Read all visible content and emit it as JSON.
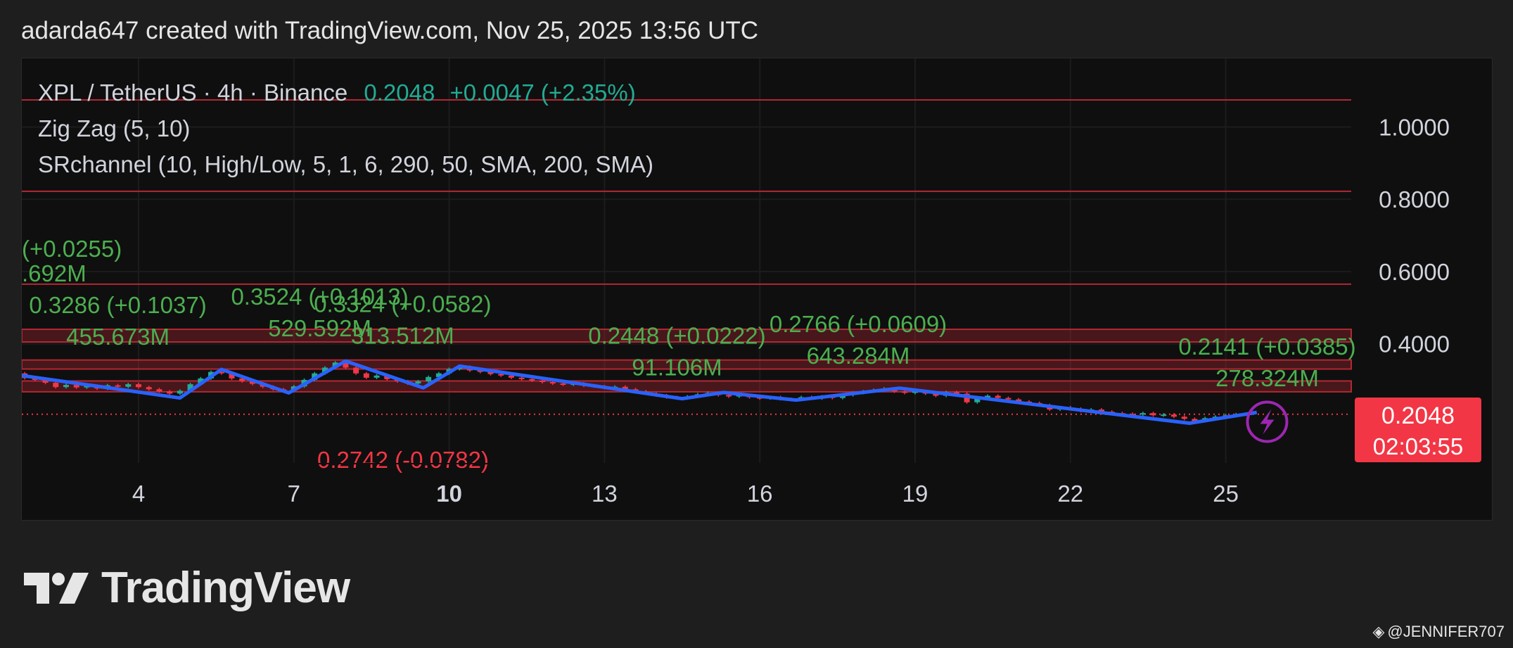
{
  "header": {
    "attribution": "adarda647 created with TradingView.com, Nov 25, 2025 13:56 UTC"
  },
  "legend": {
    "symbol": "XPL / TetherUS · 4h · Binance",
    "last": "0.2048",
    "change": "+0.0047 (+2.35%)",
    "indicator1": "Zig Zag (5, 10)",
    "indicator2": "SRchannel (10, High/Low, 5, 1, 6, 290, 50, SMA, 200, SMA)"
  },
  "price_badge": {
    "price": "0.2048",
    "countdown": "02:03:55"
  },
  "logo": {
    "text": "TradingView"
  },
  "watermark": {
    "text": "@JENNIFER707"
  },
  "colors": {
    "up": "#22ab94",
    "down": "#f23645",
    "zigzag": "#2962ff",
    "label_green": "#4caf50",
    "sr_line": "#b22833",
    "sr_zone": "rgba(178,40,51,0.35)",
    "alert_icon": "#9c27b0"
  },
  "chart_data": {
    "type": "candlestick",
    "title": "XPL / TetherUS · 4h · Binance",
    "x_ticks": [
      "4",
      "7",
      "10",
      "13",
      "16",
      "19",
      "22",
      "25"
    ],
    "x_tick_bold": [
      "10"
    ],
    "y_ticks": [
      "1.0000",
      "0.8000",
      "0.6000",
      "0.4000"
    ],
    "ylim": [
      0.07,
      1.19
    ],
    "last_price": 0.2048,
    "zigzag": [
      {
        "day": 1.6,
        "price": 0.315
      },
      {
        "day": 4.8,
        "price": 0.25
      },
      {
        "day": 5.6,
        "price": 0.329
      },
      {
        "day": 6.9,
        "price": 0.264
      },
      {
        "day": 8.0,
        "price": 0.352
      },
      {
        "day": 9.5,
        "price": 0.278
      },
      {
        "day": 10.2,
        "price": 0.338
      },
      {
        "day": 14.5,
        "price": 0.248
      },
      {
        "day": 15.3,
        "price": 0.265
      },
      {
        "day": 16.7,
        "price": 0.244
      },
      {
        "day": 18.7,
        "price": 0.277
      },
      {
        "day": 24.3,
        "price": 0.18
      },
      {
        "day": 25.6,
        "price": 0.21
      }
    ],
    "peak_labels": [
      {
        "day": 3.6,
        "price": 0.3286,
        "line1": "0.3286 (+0.1037)",
        "line2": "455.673M"
      },
      {
        "day": 7.5,
        "price": 0.3524,
        "line1": "0.3524 (+0.1013)",
        "line2": "529.592M"
      },
      {
        "day": 9.1,
        "price": 0.3324,
        "line1": "0.3324 (+0.0582)",
        "line2": "313.512M"
      },
      {
        "day": 14.4,
        "price": 0.2448,
        "line1": "0.2448 (+0.0222)",
        "line2": "91.106M"
      },
      {
        "day": 17.9,
        "price": 0.2766,
        "line1": "0.2766 (+0.0609)",
        "line2": "643.284M"
      },
      {
        "day": 25.8,
        "price": 0.2141,
        "line1": "0.2141 (+0.0385)",
        "line2": "278.324M"
      }
    ],
    "clipped_left_labels": {
      "line1": "(+0.0255)",
      "line2": ".692M"
    },
    "clipped_bottom_label": "0.2742 (-0.0782)",
    "sr_lines": [
      1.075,
      0.822,
      0.565
    ],
    "sr_zones": [
      [
        0.405,
        0.44
      ],
      [
        0.33,
        0.355
      ],
      [
        0.267,
        0.297
      ]
    ],
    "candles": [
      [
        1.6,
        0.312,
        0.318
      ],
      [
        1.8,
        0.318,
        0.305
      ],
      [
        2.0,
        0.305,
        0.3
      ],
      [
        2.2,
        0.3,
        0.292
      ],
      [
        2.4,
        0.292,
        0.28
      ],
      [
        2.6,
        0.28,
        0.286
      ],
      [
        2.8,
        0.286,
        0.279
      ],
      [
        3.0,
        0.279,
        0.283
      ],
      [
        3.2,
        0.283,
        0.276
      ],
      [
        3.4,
        0.276,
        0.285
      ],
      [
        3.6,
        0.285,
        0.281
      ],
      [
        3.8,
        0.281,
        0.288
      ],
      [
        4.0,
        0.288,
        0.28
      ],
      [
        4.2,
        0.28,
        0.274
      ],
      [
        4.4,
        0.274,
        0.268
      ],
      [
        4.6,
        0.268,
        0.262
      ],
      [
        4.8,
        0.262,
        0.27
      ],
      [
        5.0,
        0.27,
        0.288
      ],
      [
        5.2,
        0.288,
        0.304
      ],
      [
        5.4,
        0.304,
        0.322
      ],
      [
        5.6,
        0.322,
        0.318
      ],
      [
        5.8,
        0.318,
        0.304
      ],
      [
        6.0,
        0.304,
        0.296
      ],
      [
        6.2,
        0.296,
        0.289
      ],
      [
        6.4,
        0.289,
        0.281
      ],
      [
        6.6,
        0.281,
        0.274
      ],
      [
        6.8,
        0.274,
        0.27
      ],
      [
        7.0,
        0.27,
        0.282
      ],
      [
        7.2,
        0.282,
        0.3
      ],
      [
        7.4,
        0.3,
        0.318
      ],
      [
        7.6,
        0.318,
        0.334
      ],
      [
        7.8,
        0.334,
        0.348
      ],
      [
        8.0,
        0.348,
        0.334
      ],
      [
        8.2,
        0.334,
        0.318
      ],
      [
        8.4,
        0.318,
        0.306
      ],
      [
        8.6,
        0.306,
        0.312
      ],
      [
        8.8,
        0.312,
        0.302
      ],
      [
        9.0,
        0.302,
        0.296
      ],
      [
        9.2,
        0.296,
        0.29
      ],
      [
        9.4,
        0.29,
        0.296
      ],
      [
        9.6,
        0.296,
        0.308
      ],
      [
        9.8,
        0.308,
        0.318
      ],
      [
        10.0,
        0.318,
        0.33
      ],
      [
        10.2,
        0.33,
        0.336
      ],
      [
        10.4,
        0.336,
        0.326
      ],
      [
        10.6,
        0.326,
        0.322
      ],
      [
        10.8,
        0.322,
        0.316
      ],
      [
        11.0,
        0.316,
        0.312
      ],
      [
        11.2,
        0.312,
        0.306
      ],
      [
        11.4,
        0.306,
        0.302
      ],
      [
        11.6,
        0.302,
        0.298
      ],
      [
        11.8,
        0.298,
        0.294
      ],
      [
        12.0,
        0.294,
        0.29
      ],
      [
        12.2,
        0.29,
        0.287
      ],
      [
        12.4,
        0.287,
        0.29
      ],
      [
        12.6,
        0.29,
        0.284
      ],
      [
        12.8,
        0.284,
        0.282
      ],
      [
        13.0,
        0.282,
        0.278
      ],
      [
        13.2,
        0.278,
        0.281
      ],
      [
        13.4,
        0.281,
        0.274
      ],
      [
        13.6,
        0.274,
        0.268
      ],
      [
        13.8,
        0.268,
        0.262
      ],
      [
        14.0,
        0.262,
        0.257
      ],
      [
        14.2,
        0.257,
        0.252
      ],
      [
        14.4,
        0.252,
        0.249
      ],
      [
        14.6,
        0.249,
        0.254
      ],
      [
        14.8,
        0.254,
        0.26
      ],
      [
        15.0,
        0.26,
        0.264
      ],
      [
        15.2,
        0.264,
        0.258
      ],
      [
        15.4,
        0.258,
        0.254
      ],
      [
        15.6,
        0.254,
        0.258
      ],
      [
        15.8,
        0.258,
        0.252
      ],
      [
        16.0,
        0.252,
        0.249
      ],
      [
        16.2,
        0.249,
        0.252
      ],
      [
        16.4,
        0.252,
        0.247
      ],
      [
        16.6,
        0.247,
        0.245
      ],
      [
        16.8,
        0.245,
        0.252
      ],
      [
        17.0,
        0.252,
        0.249
      ],
      [
        17.2,
        0.249,
        0.254
      ],
      [
        17.4,
        0.254,
        0.25
      ],
      [
        17.6,
        0.25,
        0.258
      ],
      [
        17.8,
        0.258,
        0.264
      ],
      [
        18.0,
        0.264,
        0.268
      ],
      [
        18.2,
        0.268,
        0.272
      ],
      [
        18.4,
        0.272,
        0.276
      ],
      [
        18.6,
        0.276,
        0.268
      ],
      [
        18.8,
        0.268,
        0.264
      ],
      [
        19.0,
        0.264,
        0.268
      ],
      [
        19.2,
        0.268,
        0.262
      ],
      [
        19.4,
        0.262,
        0.256
      ],
      [
        19.6,
        0.256,
        0.266
      ],
      [
        19.8,
        0.266,
        0.262
      ],
      [
        20.0,
        0.262,
        0.238
      ],
      [
        20.2,
        0.238,
        0.25
      ],
      [
        20.4,
        0.25,
        0.256
      ],
      [
        20.6,
        0.256,
        0.25
      ],
      [
        20.8,
        0.25,
        0.246
      ],
      [
        21.0,
        0.246,
        0.24
      ],
      [
        21.2,
        0.24,
        0.236
      ],
      [
        21.4,
        0.236,
        0.23
      ],
      [
        21.6,
        0.23,
        0.218
      ],
      [
        21.8,
        0.218,
        0.224
      ],
      [
        22.0,
        0.224,
        0.22
      ],
      [
        22.2,
        0.22,
        0.214
      ],
      [
        22.4,
        0.214,
        0.218
      ],
      [
        22.6,
        0.218,
        0.212
      ],
      [
        22.8,
        0.212,
        0.208
      ],
      [
        23.0,
        0.208,
        0.206
      ],
      [
        23.2,
        0.206,
        0.204
      ],
      [
        23.4,
        0.204,
        0.208
      ],
      [
        23.6,
        0.208,
        0.202
      ],
      [
        23.8,
        0.202,
        0.204
      ],
      [
        24.0,
        0.204,
        0.198
      ],
      [
        24.2,
        0.198,
        0.192
      ],
      [
        24.4,
        0.192,
        0.186
      ],
      [
        24.6,
        0.186,
        0.194
      ],
      [
        24.8,
        0.194,
        0.198
      ],
      [
        25.0,
        0.198,
        0.202
      ],
      [
        25.2,
        0.202,
        0.2048
      ]
    ]
  }
}
